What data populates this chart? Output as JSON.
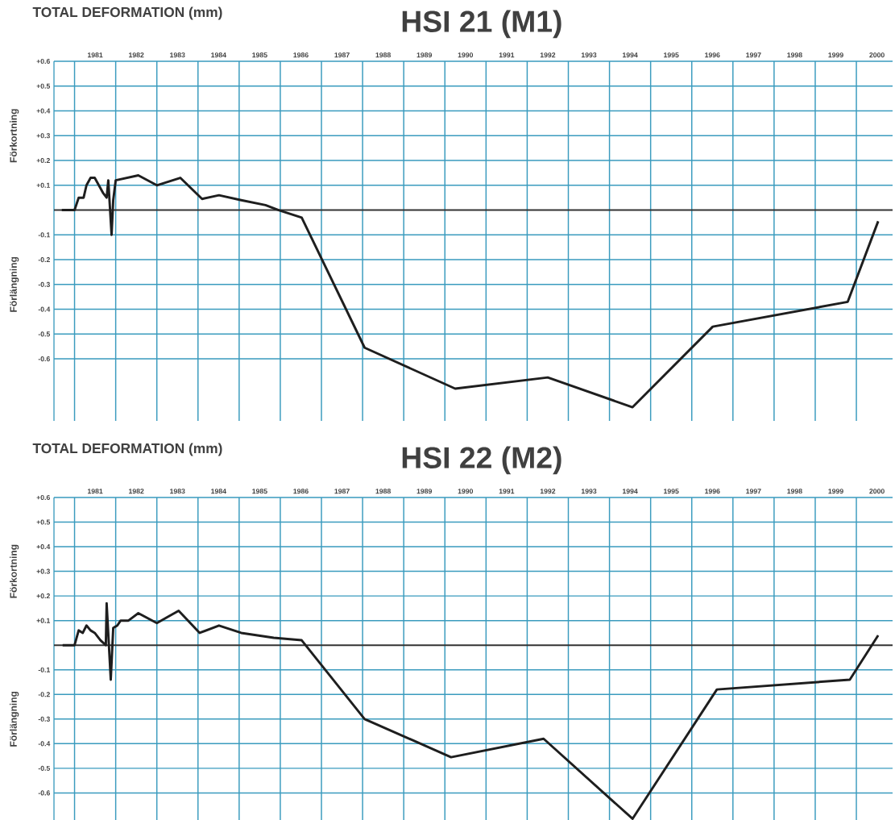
{
  "chart_data": [
    {
      "type": "line",
      "title": "HSI 21 (M1)",
      "ylabel": "TOTAL DEFORMATION (mm)",
      "annotations": [
        "Förkortning",
        "Förlängning"
      ],
      "xlim": [
        1980.5,
        2000.88
      ],
      "ylim": [
        -0.85,
        0.6
      ],
      "xticks": [
        {
          "value": 1981,
          "label": null
        },
        {
          "value": 1982,
          "label": null
        },
        {
          "value": 1983,
          "label": null
        },
        {
          "value": 1984,
          "label": null
        },
        {
          "value": 1985,
          "label": null
        },
        {
          "value": 1986,
          "label": null
        },
        {
          "value": 1987,
          "label": null
        },
        {
          "value": 1988,
          "label": null
        },
        {
          "value": 1989,
          "label": null
        },
        {
          "value": 1990,
          "label": null
        },
        {
          "value": 1991,
          "label": null
        },
        {
          "value": 1992,
          "label": null
        },
        {
          "value": 1993,
          "label": null
        },
        {
          "value": 1994,
          "label": null
        },
        {
          "value": 1995,
          "label": null
        },
        {
          "value": 1996,
          "label": null
        },
        {
          "value": 1997,
          "label": null
        },
        {
          "value": 1998,
          "label": null
        },
        {
          "value": 1999,
          "label": null
        },
        {
          "value": 2000,
          "label": null
        },
        {
          "value": 1981.5,
          "label": "1981"
        },
        {
          "value": 1982.5,
          "label": "1982"
        },
        {
          "value": 1983.5,
          "label": "1983"
        },
        {
          "value": 1984.5,
          "label": "1984"
        },
        {
          "value": 1985.5,
          "label": "1985"
        },
        {
          "value": 1986.5,
          "label": "1986"
        },
        {
          "value": 1987.5,
          "label": "1987"
        },
        {
          "value": 1988.5,
          "label": "1988"
        },
        {
          "value": 1989.5,
          "label": "1989"
        },
        {
          "value": 1990.5,
          "label": "1990"
        },
        {
          "value": 1991.5,
          "label": "1991"
        },
        {
          "value": 1992.5,
          "label": "1992"
        },
        {
          "value": 1993.5,
          "label": "1993"
        },
        {
          "value": 1994.5,
          "label": "1994"
        },
        {
          "value": 1995.5,
          "label": "1995"
        },
        {
          "value": 1996.5,
          "label": "1996"
        },
        {
          "value": 1997.5,
          "label": "1997"
        },
        {
          "value": 1998.5,
          "label": "1998"
        },
        {
          "value": 1999.5,
          "label": "1999"
        },
        {
          "value": 2000.5,
          "label": "2000"
        }
      ],
      "yticks": [
        {
          "value": 0.6,
          "label": "+0.6"
        },
        {
          "value": 0.5,
          "label": "+0.5"
        },
        {
          "value": 0.4,
          "label": "+0.4"
        },
        {
          "value": 0.3,
          "label": "+0.3"
        },
        {
          "value": 0.2,
          "label": "+0.2"
        },
        {
          "value": 0.1,
          "label": "+0.1"
        },
        {
          "value": -0.1,
          "label": "-0.1"
        },
        {
          "value": -0.2,
          "label": "-0.2"
        },
        {
          "value": -0.3,
          "label": "-0.3"
        },
        {
          "value": -0.4,
          "label": "-0.4"
        },
        {
          "value": -0.5,
          "label": "-0.5"
        },
        {
          "value": -0.6,
          "label": "-0.6"
        }
      ],
      "ref_lines": [
        {
          "axis": "y",
          "value": 0,
          "color": "#333333"
        }
      ],
      "grid": true,
      "line_style": "solid",
      "marker": "none",
      "series": [
        {
          "color": "#1e1e1e",
          "x": [
            1980.69,
            1981.0,
            1981.1,
            1981.22,
            1981.29,
            1981.39,
            1981.49,
            1981.59,
            1981.69,
            1981.78,
            1981.82,
            1981.9,
            1981.94,
            1982.0,
            1982.55,
            1983.0,
            1983.57,
            1984.1,
            1984.51,
            1985.05,
            1985.64,
            1985.96,
            1986.52,
            1988.05,
            1990.25,
            1992.5,
            1994.56,
            1996.51,
            1999.79,
            2000.53
          ],
          "values": [
            0,
            0,
            0.05,
            0.05,
            0.1,
            0.13,
            0.13,
            0.1,
            0.07,
            0.05,
            0.12,
            -0.1,
            0.04,
            0.12,
            0.14,
            0.1,
            0.13,
            0.045,
            0.06,
            0.04,
            0.02,
            0,
            -0.03,
            -0.555,
            -0.72,
            -0.675,
            -0.795,
            -0.47,
            -0.37,
            -0.045
          ]
        }
      ]
    },
    {
      "type": "line",
      "title": "HSI 22 (M2)",
      "ylabel": "TOTAL DEFORMATION (mm)",
      "annotations": [
        "Förkortning",
        "Förlängning"
      ],
      "xlim": [
        1980.5,
        2000.88
      ],
      "ylim": [
        -0.71,
        0.6
      ],
      "xticks": [
        {
          "value": 1981,
          "label": null
        },
        {
          "value": 1982,
          "label": null
        },
        {
          "value": 1983,
          "label": null
        },
        {
          "value": 1984,
          "label": null
        },
        {
          "value": 1985,
          "label": null
        },
        {
          "value": 1986,
          "label": null
        },
        {
          "value": 1987,
          "label": null
        },
        {
          "value": 1988,
          "label": null
        },
        {
          "value": 1989,
          "label": null
        },
        {
          "value": 1990,
          "label": null
        },
        {
          "value": 1991,
          "label": null
        },
        {
          "value": 1992,
          "label": null
        },
        {
          "value": 1993,
          "label": null
        },
        {
          "value": 1994,
          "label": null
        },
        {
          "value": 1995,
          "label": null
        },
        {
          "value": 1996,
          "label": null
        },
        {
          "value": 1997,
          "label": null
        },
        {
          "value": 1998,
          "label": null
        },
        {
          "value": 1999,
          "label": null
        },
        {
          "value": 2000,
          "label": null
        },
        {
          "value": 1981.5,
          "label": "1981"
        },
        {
          "value": 1982.5,
          "label": "1982"
        },
        {
          "value": 1983.5,
          "label": "1983"
        },
        {
          "value": 1984.5,
          "label": "1984"
        },
        {
          "value": 1985.5,
          "label": "1985"
        },
        {
          "value": 1986.5,
          "label": "1986"
        },
        {
          "value": 1987.5,
          "label": "1987"
        },
        {
          "value": 1988.5,
          "label": "1988"
        },
        {
          "value": 1989.5,
          "label": "1989"
        },
        {
          "value": 1990.5,
          "label": "1990"
        },
        {
          "value": 1991.5,
          "label": "1991"
        },
        {
          "value": 1992.5,
          "label": "1992"
        },
        {
          "value": 1993.5,
          "label": "1993"
        },
        {
          "value": 1994.5,
          "label": "1994"
        },
        {
          "value": 1995.5,
          "label": "1995"
        },
        {
          "value": 1996.5,
          "label": "1996"
        },
        {
          "value": 1997.5,
          "label": "1997"
        },
        {
          "value": 1998.5,
          "label": "1998"
        },
        {
          "value": 1999.5,
          "label": "1999"
        },
        {
          "value": 2000.5,
          "label": "2000"
        }
      ],
      "yticks": [
        {
          "value": 0.6,
          "label": "+0.6"
        },
        {
          "value": 0.5,
          "label": "+0.5"
        },
        {
          "value": 0.4,
          "label": "+0.4"
        },
        {
          "value": 0.3,
          "label": "+0.3"
        },
        {
          "value": 0.2,
          "label": "+0.2"
        },
        {
          "value": 0.1,
          "label": "+0.1"
        },
        {
          "value": -0.1,
          "label": "-0.1"
        },
        {
          "value": -0.2,
          "label": "-0.2"
        },
        {
          "value": -0.3,
          "label": "-0.3"
        },
        {
          "value": -0.4,
          "label": "-0.4"
        },
        {
          "value": -0.5,
          "label": "-0.5"
        },
        {
          "value": -0.6,
          "label": "-0.6"
        }
      ],
      "ref_lines": [
        {
          "axis": "y",
          "value": 0,
          "color": "#333333"
        }
      ],
      "grid": true,
      "line_style": "solid",
      "marker": "none",
      "series": [
        {
          "color": "#1e1e1e",
          "x": [
            1980.71,
            1981.0,
            1981.1,
            1981.2,
            1981.29,
            1981.39,
            1981.49,
            1981.63,
            1981.76,
            1981.78,
            1981.88,
            1981.94,
            1982.04,
            1982.12,
            1982.31,
            1982.55,
            1983.0,
            1983.53,
            1984.04,
            1984.51,
            1985.05,
            1985.84,
            1986.52,
            1988.05,
            1990.15,
            1992.4,
            1994.56,
            1996.61,
            1999.84,
            2000.53
          ],
          "values": [
            0,
            0,
            0.06,
            0.05,
            0.08,
            0.06,
            0.05,
            0.02,
            0,
            0.17,
            -0.14,
            0.07,
            0.08,
            0.1,
            0.1,
            0.13,
            0.09,
            0.14,
            0.05,
            0.08,
            0.05,
            0.03,
            0.02,
            -0.3,
            -0.455,
            -0.38,
            -0.705,
            -0.18,
            -0.14,
            0.04
          ]
        }
      ]
    }
  ]
}
